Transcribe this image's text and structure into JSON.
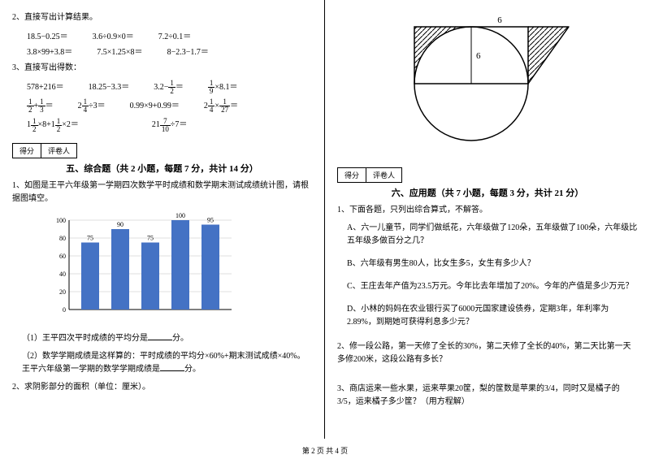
{
  "left": {
    "q2_title": "2、直接写出计算结果。",
    "q2_row1": [
      "18.5−0.25＝",
      "3.6÷0.9×0＝",
      "7.2÷0.1＝"
    ],
    "q2_row2": [
      "3.8×99+3.8＝",
      "7.5×1.25×8＝",
      "8−2.3−1.7＝"
    ],
    "q3_title": "3、直接写出得数：",
    "q3_r1": {
      "a": "578+216＝",
      "b": "18.25−3.3＝",
      "c_pre": "3.2−",
      "c_f": {
        "n": "1",
        "d": "2"
      },
      "c_post": "＝",
      "d_f": {
        "n": "1",
        "d": "9"
      },
      "d_post": "×8.1＝"
    },
    "q3_r2": {
      "a_f1": {
        "n": "1",
        "d": "2"
      },
      "a_mid": "+",
      "a_f2": {
        "n": "1",
        "d": "3"
      },
      "a_post": "＝",
      "b_pre": "2",
      "b_f": {
        "n": "1",
        "d": "4"
      },
      "b_post": "÷3＝",
      "c": "0.99×9+0.99＝",
      "d_pre": "2",
      "d_f1": {
        "n": "1",
        "d": "4"
      },
      "d_mid": "×",
      "d_f2": {
        "n": "1",
        "d": "27"
      },
      "d_post": "＝"
    },
    "q3_r3": {
      "a_pre": "1",
      "a_f1": {
        "n": "1",
        "d": "2"
      },
      "a_mid": "×8+1",
      "a_f2": {
        "n": "1",
        "d": "2"
      },
      "a_post": "×2＝",
      "b_pre": "21",
      "b_f": {
        "n": "7",
        "d": "10"
      },
      "b_post": "÷7＝"
    },
    "score": {
      "a": "得分",
      "b": "评卷人"
    },
    "sec5_title": "五、综合题（共 2 小题，每题 7 分，共计 14 分）",
    "sec5_q1": "1、如图是王平六年级第一学期四次数学平时成绩和数学期末测试成绩统计图，请根据图填空。",
    "chart": {
      "ylabels": [
        "0",
        "20",
        "40",
        "60",
        "80",
        "100"
      ],
      "bars": [
        {
          "val": 75,
          "label": "75"
        },
        {
          "val": 90,
          "label": "90"
        },
        {
          "val": 75,
          "label": "75"
        },
        {
          "val": 100,
          "label": "100"
        },
        {
          "val": 95,
          "label": "95"
        }
      ],
      "bar_color": "#4472c4",
      "grid_color": "#bfbfbf",
      "axis_color": "#000000"
    },
    "sec5_q1_1": "（1）王平四次平时成绩的平均分是",
    "sec5_q1_1b": "分。",
    "sec5_q1_2": "（2）数学学期成绩是这样算的：平时成绩的平均分×60%+期末测试成绩×40%。王平六年级第一学期的数学学期成绩是",
    "sec5_q1_2b": "分。",
    "sec5_q2": "2、求阴影部分的面积（单位：厘米）。"
  },
  "right": {
    "fig": {
      "top_label": "6",
      "radius_label": "6"
    },
    "score": {
      "a": "得分",
      "b": "评卷人"
    },
    "sec6_title": "六、应用题（共 7 小题，每题 3 分，共计 21 分）",
    "q1": "1、下面各题，只列出综合算式，不解答。",
    "q1a": "A、六一儿童节，同学们做纸花，六年级做了120朵，五年级做了100朵，六年级比五年级多做百分之几？",
    "q1b": "B、六年级有男生80人，比女生多5，女生有多少人？",
    "q1c": "C、王庄去年产值为23.5万元。今年比去年增加了20%。今年的产值是多少万元？",
    "q1d": "D、小林的妈妈在农业银行买了6000元国家建设债券，定期3年，年利率为2.89%，到期她可获得利息多少元？",
    "q2": "2、修一段公路，第一天修了全长的30%，第二天修了全长的40%，第二天比第一天多修200米，这段公路有多长？",
    "q3": "3、商店运来一些水果，运来苹果20筐，梨的筐数是苹果的3/4，同时又是橘子的3/5，运来橘子多少筐？（用方程解）"
  },
  "footer": "第 2 页 共 4 页"
}
